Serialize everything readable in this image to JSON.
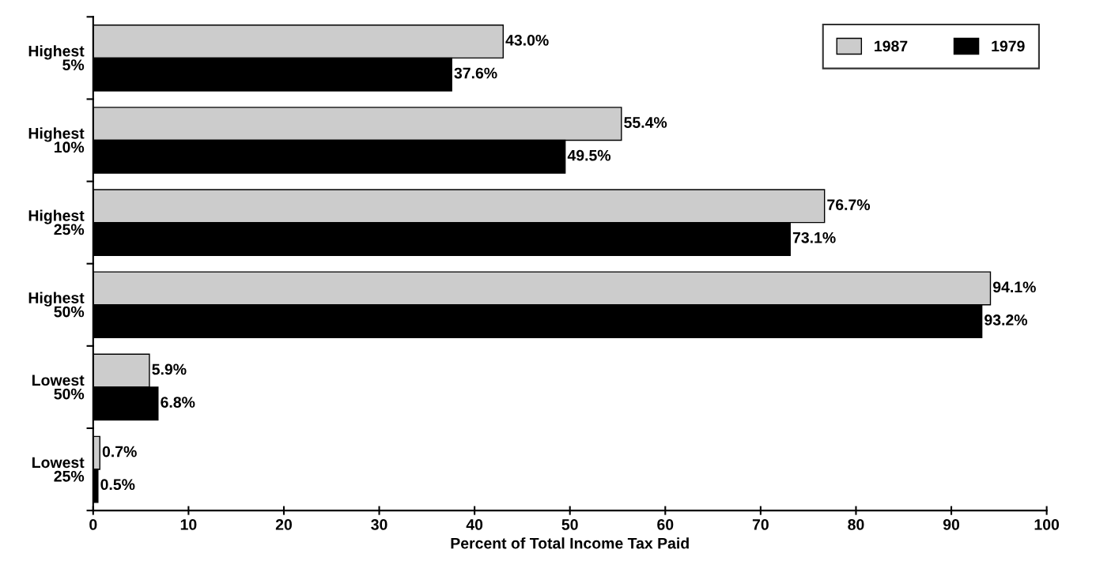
{
  "chart_data": {
    "type": "bar",
    "orientation": "horizontal",
    "xlabel": "Percent of Total Income Tax Paid",
    "categories": [
      "Highest\n5%",
      "Highest\n10%",
      "Highest\n25%",
      "Highest\n50%",
      "Lowest\n50%",
      "Lowest\n25%"
    ],
    "series": [
      {
        "name": "1987",
        "color": "#cccccc",
        "values": [
          43.0,
          55.4,
          76.7,
          94.1,
          5.9,
          0.7
        ],
        "value_labels": [
          "43.0%",
          "55.4%",
          "76.7%",
          "94.1%",
          "5.9%",
          "0.7%"
        ]
      },
      {
        "name": "1979",
        "color": "#000000",
        "values": [
          37.6,
          49.5,
          73.1,
          93.2,
          6.8,
          0.5
        ],
        "value_labels": [
          "37.6%",
          "49.5%",
          "73.1%",
          "93.2%",
          "6.8%",
          "0.5%"
        ]
      }
    ],
    "xlim": [
      0,
      100
    ],
    "xticks": [
      0,
      10,
      20,
      30,
      40,
      50,
      60,
      70,
      80,
      90,
      100
    ],
    "grid": false,
    "legend": "top right"
  }
}
